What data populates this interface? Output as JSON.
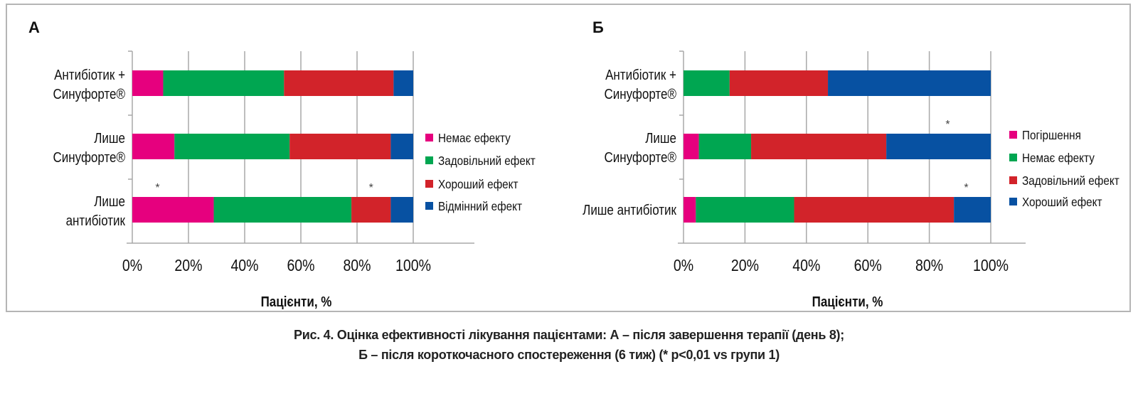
{
  "chart_data": [
    {
      "type": "bar",
      "stacked": true,
      "orientation": "horizontal",
      "panel_label": "А",
      "categories": [
        "Антибіотик + Синуфорте®",
        "Лише Синуфорте®",
        "Лише антибіотик"
      ],
      "category_lines": [
        [
          "Антибіотик +",
          "Синуфорте®"
        ],
        [
          "Лише",
          "Синуфорте®"
        ],
        [
          "Лише",
          "антибіотик"
        ]
      ],
      "series": [
        {
          "name": "Немає ефекту",
          "color": "#e6007e",
          "values": [
            11,
            15,
            29
          ]
        },
        {
          "name": "Задовільний ефект",
          "color": "#00a651",
          "values": [
            43,
            41,
            49
          ]
        },
        {
          "name": "Хороший ефект",
          "color": "#d2232a",
          "values": [
            39,
            36,
            14
          ]
        },
        {
          "name": "Відмінний ефект",
          "color": "#0751a2",
          "values": [
            7,
            8,
            8
          ]
        }
      ],
      "annotations": [
        {
          "text": "*",
          "category": "Лише антибіотик",
          "x": 9
        },
        {
          "text": "*",
          "category": "Лише антибіотик",
          "x": 85
        }
      ],
      "xlabel": "Пацієнти, %",
      "xlim": [
        0,
        100
      ],
      "xticks": [
        "0%",
        "20%",
        "40%",
        "60%",
        "80%",
        "100%"
      ],
      "grid": true,
      "legend": "right"
    },
    {
      "type": "bar",
      "stacked": true,
      "orientation": "horizontal",
      "panel_label": "Б",
      "categories": [
        "Антибіотик + Синуфорте®",
        "Лише Синуфорте®",
        "Лише антибіотик"
      ],
      "category_lines": [
        [
          "Антибіотик +",
          "Синуфорте®"
        ],
        [
          "Лише",
          "Синуфорте®"
        ],
        [
          "Лише антибіотик"
        ]
      ],
      "series": [
        {
          "name": "Погіршення",
          "color": "#e6007e",
          "values": [
            0,
            5,
            4
          ]
        },
        {
          "name": "Немає ефекту",
          "color": "#00a651",
          "values": [
            15,
            17,
            32
          ]
        },
        {
          "name": "Задовільний ефект",
          "color": "#d2232a",
          "values": [
            32,
            44,
            52
          ]
        },
        {
          "name": "Хороший ефект",
          "color": "#0751a2",
          "values": [
            53,
            34,
            12
          ]
        }
      ],
      "annotations": [
        {
          "text": "*",
          "category": "Лише Синуфорте®",
          "x": 86
        },
        {
          "text": "*",
          "category": "Лише антибіотик",
          "x": 92
        }
      ],
      "xlabel": "Пацієнти, %",
      "xlim": [
        0,
        100
      ],
      "xticks": [
        "0%",
        "20%",
        "40%",
        "60%",
        "80%",
        "100%"
      ],
      "grid": true,
      "legend": "right"
    }
  ],
  "caption": {
    "line1": "Рис. 4. Оцінка ефективності лікування пацієнтами: А – після завершення терапії (день 8);",
    "line2": "Б – після короткочасного спостереження (6 тиж) (* p<0,01 vs групи 1)"
  }
}
